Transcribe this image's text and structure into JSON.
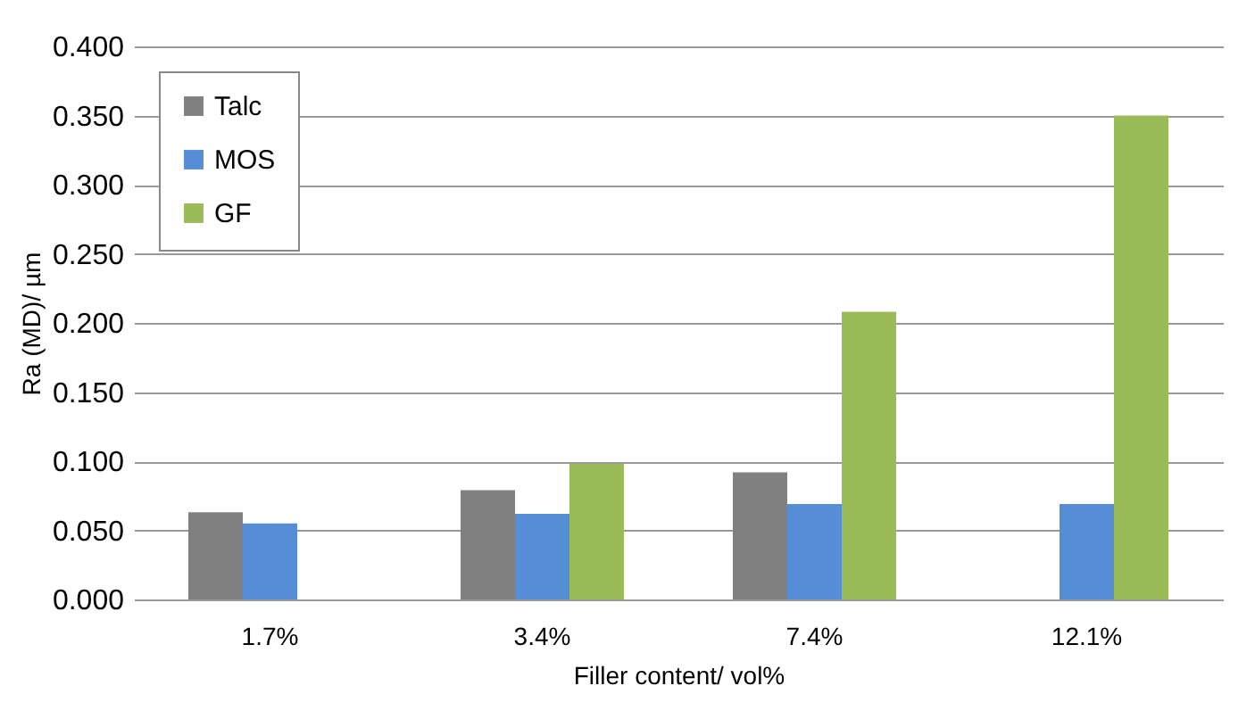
{
  "chart_data": {
    "type": "bar",
    "xlabel": "Filler content/ vol%",
    "ylabel": "Ra (MD)/ µm",
    "categories": [
      "1.7%",
      "3.4%",
      "7.4%",
      "12.1%"
    ],
    "series": [
      {
        "name": "Talc",
        "color": "#808080",
        "values": [
          0.063,
          0.079,
          0.092,
          null
        ]
      },
      {
        "name": "MOS",
        "color": "#558ed5",
        "values": [
          0.055,
          0.062,
          0.069,
          0.069
        ]
      },
      {
        "name": "GF",
        "color": "#9bbb59",
        "values": [
          null,
          0.098,
          0.208,
          0.35
        ]
      }
    ],
    "ylim": [
      0,
      0.4
    ],
    "yticks": [
      {
        "value": 0,
        "label": "0.000"
      },
      {
        "value": 0.05,
        "label": "0.050"
      },
      {
        "value": 0.1,
        "label": "0.100"
      },
      {
        "value": 0.15,
        "label": "0.150"
      },
      {
        "value": 0.2,
        "label": "0.200"
      },
      {
        "value": 0.25,
        "label": "0.250"
      },
      {
        "value": 0.3,
        "label": "0.300"
      },
      {
        "value": 0.35,
        "label": "0.350"
      },
      {
        "value": 0.4,
        "label": "0.400"
      }
    ],
    "grid": "y",
    "legend": "top left"
  }
}
